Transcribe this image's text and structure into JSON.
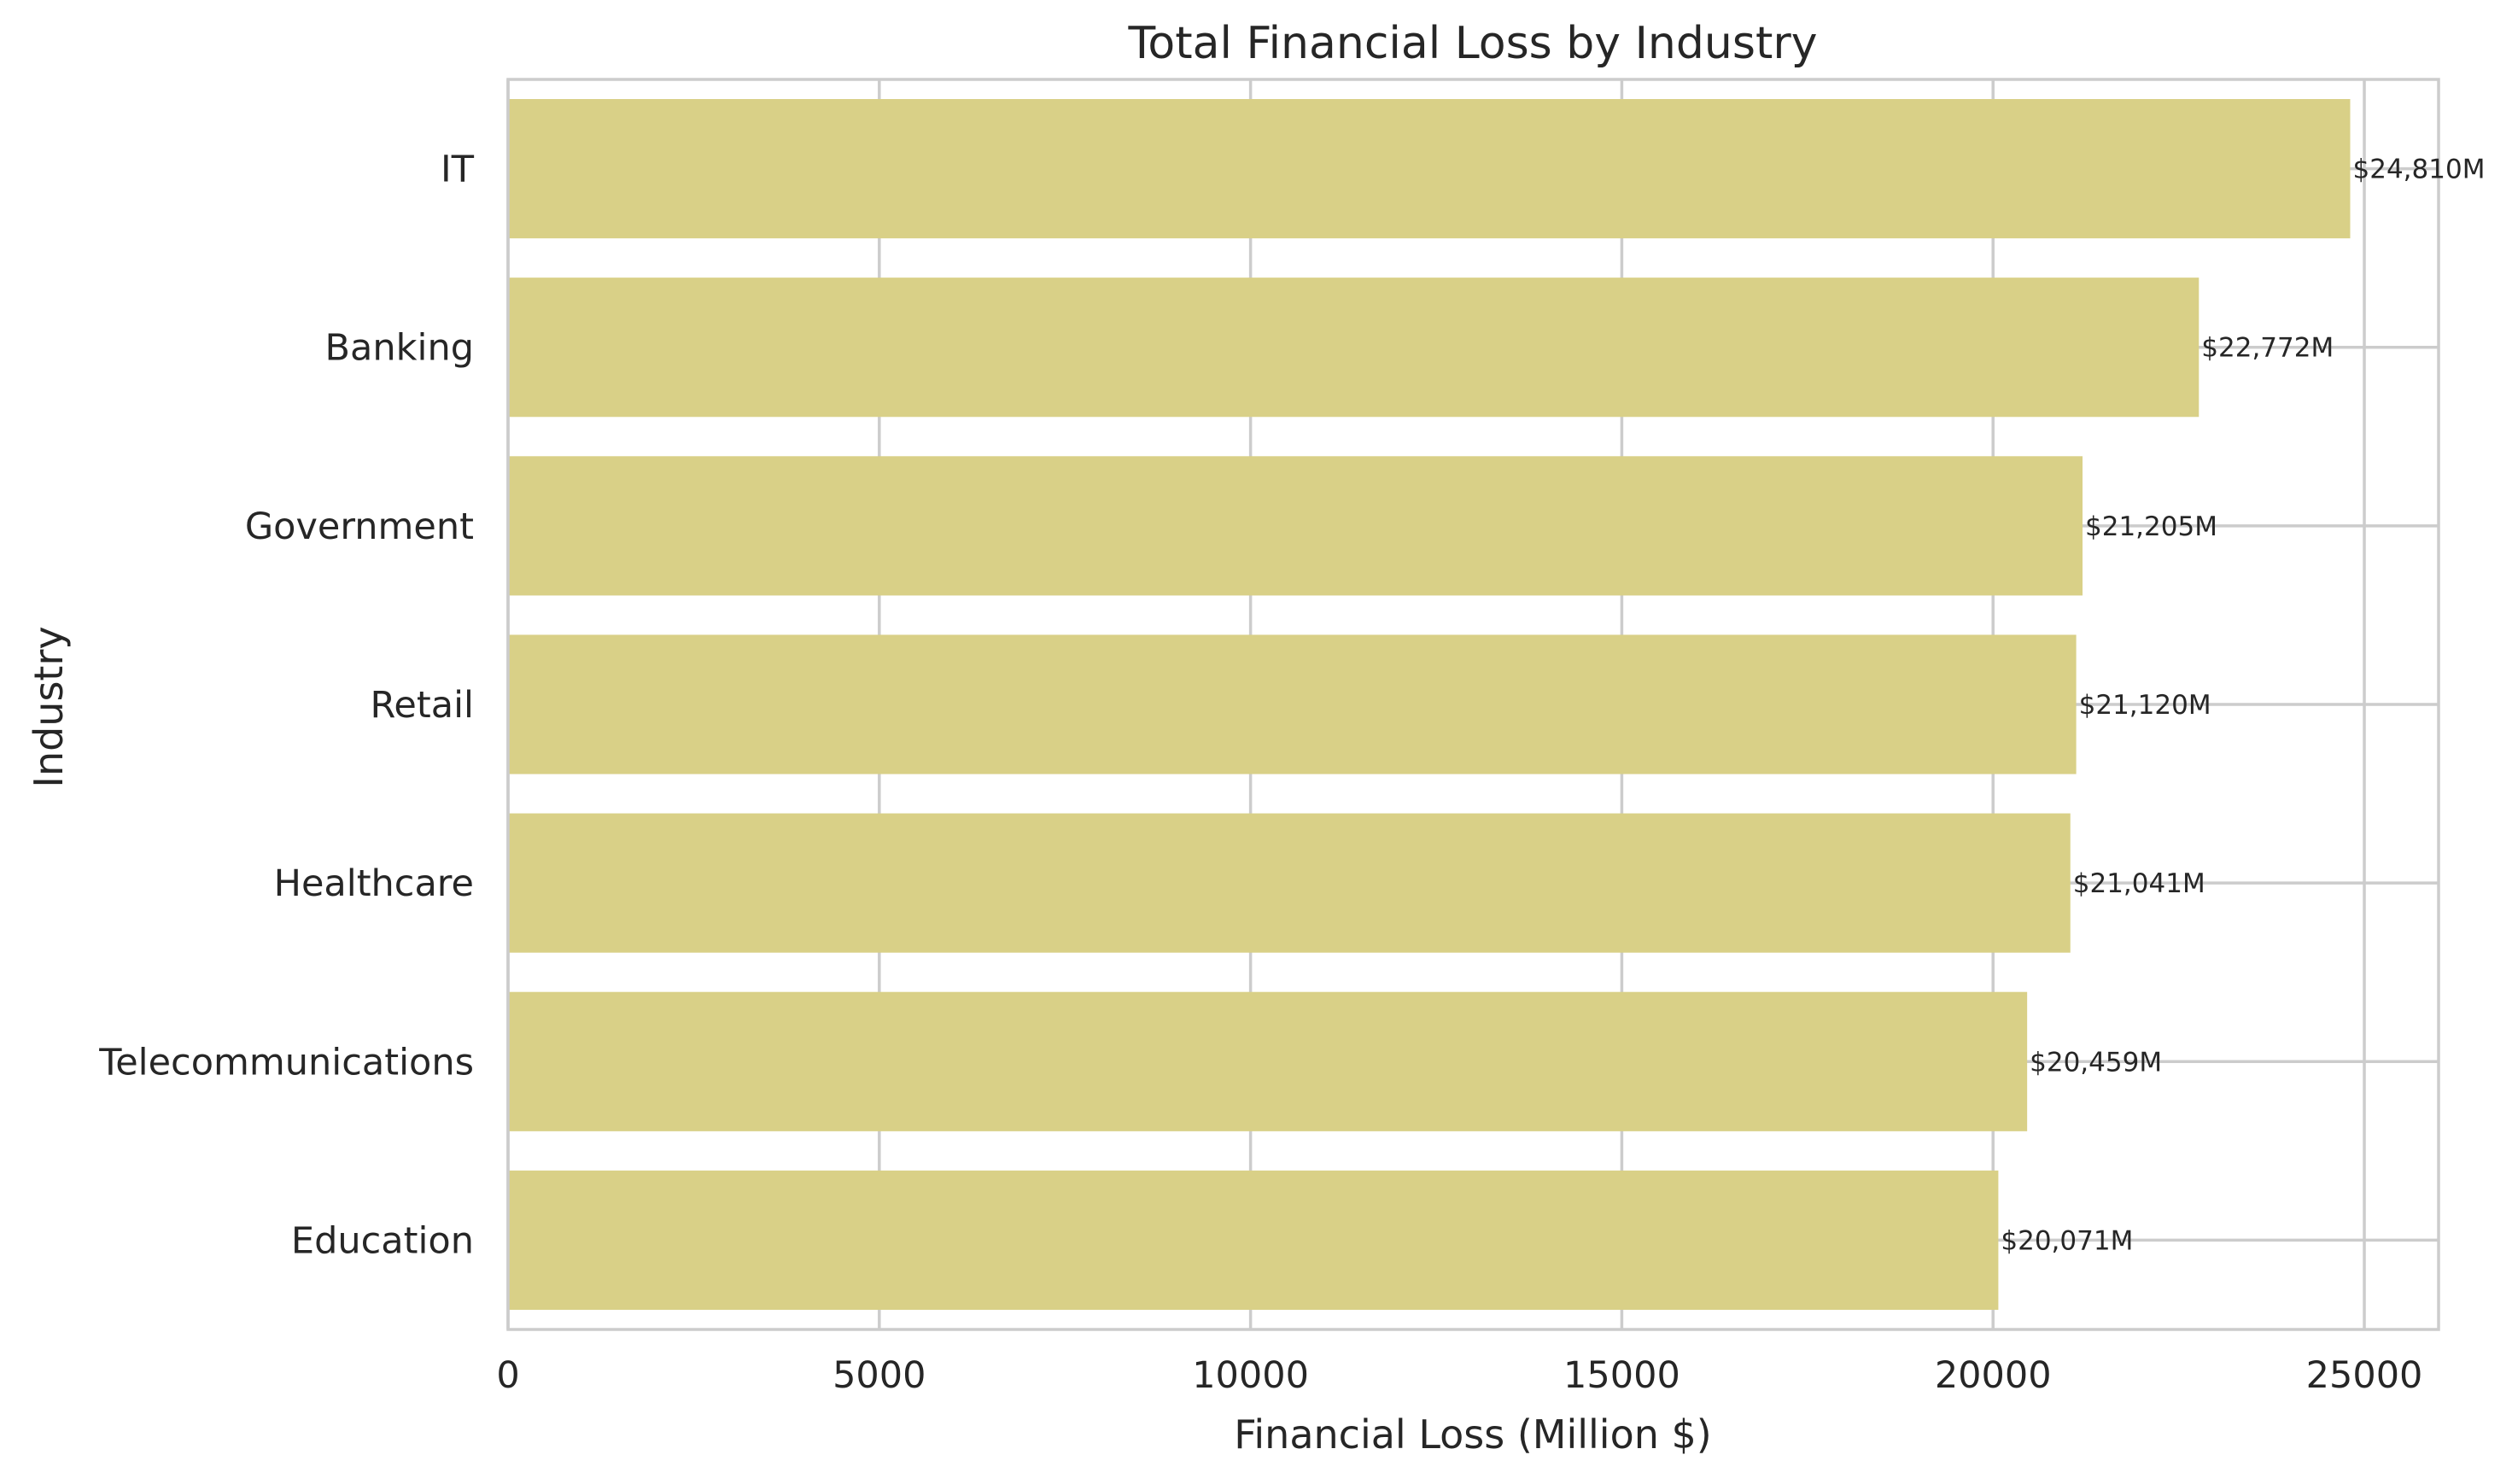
{
  "chart_data": {
    "type": "bar",
    "orientation": "horizontal",
    "title": "Total Financial Loss by Industry",
    "xlabel": "Financial Loss (Million $)",
    "ylabel": "Industry",
    "categories": [
      "IT",
      "Banking",
      "Government",
      "Retail",
      "Healthcare",
      "Telecommunications",
      "Education"
    ],
    "values": [
      24810,
      22772,
      21205,
      21120,
      21041,
      20459,
      20071
    ],
    "data_labels": [
      "$24,810M",
      "$22,772M",
      "$21,205M",
      "$21,120M",
      "$21,041M",
      "$20,459M",
      "$20,071M"
    ],
    "xlim": [
      0,
      26000
    ],
    "xticks": [
      0,
      5000,
      10000,
      15000,
      20000,
      25000
    ],
    "xtick_labels": [
      "0",
      "5000",
      "10000",
      "15000",
      "20000",
      "25000"
    ],
    "grid": true,
    "colors": {
      "bar": "#d9d087",
      "grid": "#cccccc",
      "text": "#262626",
      "background": "#ffffff"
    }
  }
}
